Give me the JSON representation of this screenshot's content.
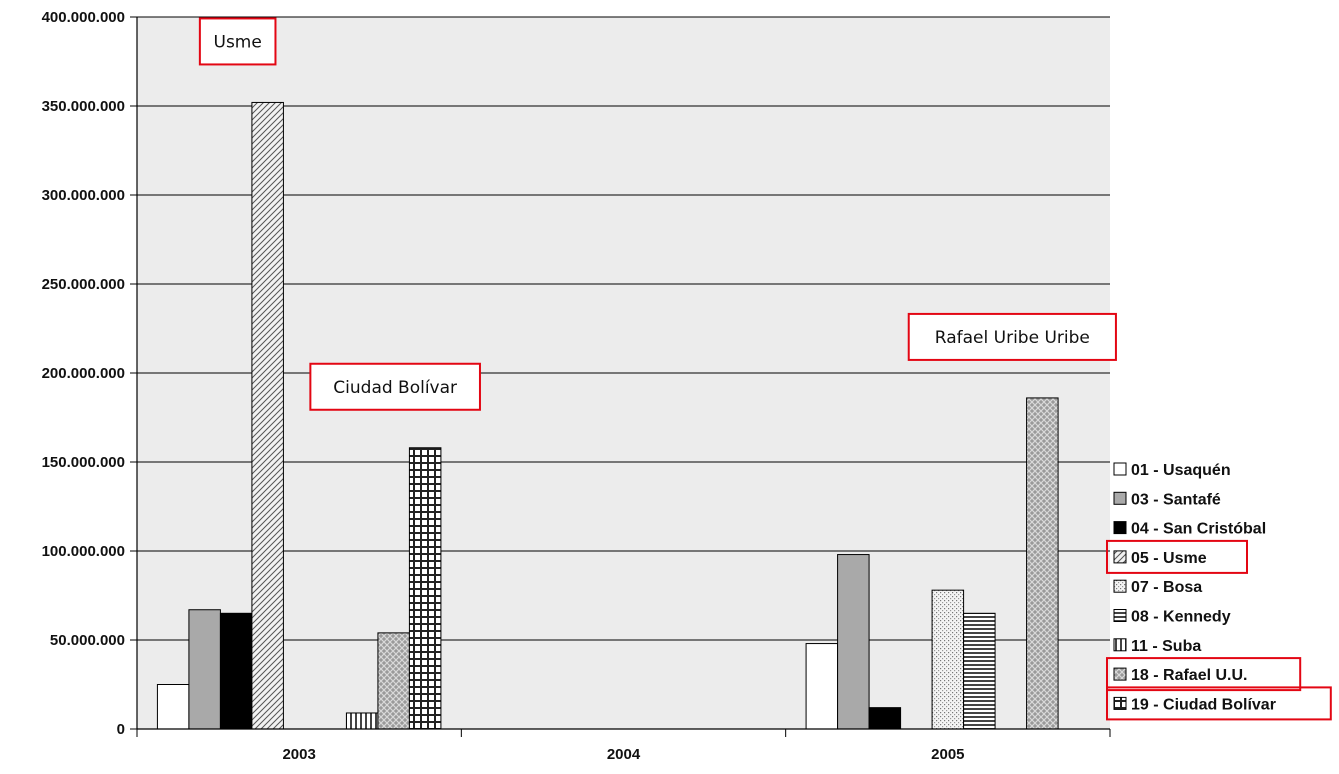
{
  "chart_data": {
    "type": "bar",
    "categories": [
      "2003",
      "2004",
      "2005"
    ],
    "ylim": [
      0,
      400000000
    ],
    "yticks": [
      {
        "value": 0,
        "label": "0"
      },
      {
        "value": 50000000,
        "label": "50.000.000"
      },
      {
        "value": 100000000,
        "label": "100.000.000"
      },
      {
        "value": 150000000,
        "label": "150.000.000"
      },
      {
        "value": 200000000,
        "label": "200.000.000"
      },
      {
        "value": 250000000,
        "label": "250.000.000"
      },
      {
        "value": 300000000,
        "label": "300.000.000"
      },
      {
        "value": 350000000,
        "label": "350.000.000"
      },
      {
        "value": 400000000,
        "label": "400.000.000"
      }
    ],
    "grid": "horizontal",
    "legend_position": "right",
    "series": [
      {
        "name": "01 - Usaquén",
        "pattern": "white",
        "values": [
          25000000,
          0,
          48000000
        ]
      },
      {
        "name": "03 - Santafé",
        "pattern": "gray",
        "values": [
          67000000,
          0,
          98000000
        ]
      },
      {
        "name": "04 - San Cristóbal",
        "pattern": "black",
        "values": [
          65000000,
          0,
          12000000
        ]
      },
      {
        "name": "05 - Usme",
        "pattern": "diagonal",
        "values": [
          352000000,
          0,
          0
        ]
      },
      {
        "name": "07 - Bosa",
        "pattern": "dots",
        "values": [
          0,
          0,
          78000000
        ]
      },
      {
        "name": "08 - Kennedy",
        "pattern": "hlines",
        "values": [
          0,
          0,
          65000000
        ]
      },
      {
        "name": "11 - Suba",
        "pattern": "vlines",
        "values": [
          9000000,
          0,
          0
        ]
      },
      {
        "name": "18 - Rafael U.U.",
        "pattern": "crosshatch",
        "values": [
          54000000,
          0,
          186000000
        ]
      },
      {
        "name": "19 - Ciudad Bolívar",
        "pattern": "grid",
        "values": [
          158000000,
          0,
          0
        ]
      }
    ],
    "annotations": [
      {
        "text": "Usme",
        "category": "2003",
        "series": "05 - Usme"
      },
      {
        "text": "Ciudad Bolívar",
        "category": "2003",
        "series": "19 - Ciudad Bolívar"
      },
      {
        "text": "Rafael Uribe Uribe",
        "category": "2005",
        "series": "18 - Rafael U.U."
      }
    ],
    "highlighted_legend_entries": [
      "05 - Usme",
      "18 - Rafael U.U.",
      "19 - Ciudad Bolívar"
    ]
  },
  "colors": {
    "plot_background": "#ececec",
    "gridline": "#000000",
    "highlight_box": "#e30613",
    "gray_fill": "#a9a9a9",
    "black_fill": "#000000"
  }
}
